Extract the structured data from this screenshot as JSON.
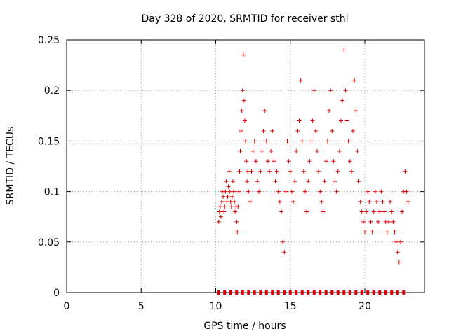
{
  "chart_data": {
    "type": "scatter",
    "title": "Day 328 of 2020, SRMTID for receiver sthl",
    "xlabel": "GPS time / hours",
    "ylabel": "SRMTID / TECUs",
    "xlim": [
      0,
      24
    ],
    "ylim": [
      0,
      0.25
    ],
    "x_ticks": [
      0,
      5,
      10,
      15,
      20
    ],
    "x_tick_labels": [
      "0",
      "5",
      "10",
      "15",
      "20"
    ],
    "y_ticks": [
      0,
      0.05,
      0.1,
      0.15,
      0.2,
      0.25
    ],
    "y_tick_labels": [
      "0",
      "0.05",
      "0.1",
      "0.15",
      "0.2",
      "0.25"
    ],
    "grid": true,
    "marker": "+",
    "color": "#dd0000",
    "series": [
      {
        "name": "SRMTID",
        "points": [
          [
            10.2,
            0.07
          ],
          [
            10.25,
            0.08
          ],
          [
            10.3,
            0.085
          ],
          [
            10.35,
            0.075
          ],
          [
            10.4,
            0.09
          ],
          [
            10.45,
            0.1
          ],
          [
            10.5,
            0.095
          ],
          [
            10.55,
            0.08
          ],
          [
            10.6,
            0.085
          ],
          [
            10.65,
            0.1
          ],
          [
            10.7,
            0.11
          ],
          [
            10.75,
            0.09
          ],
          [
            10.8,
            0.095
          ],
          [
            10.85,
            0.105
          ],
          [
            10.9,
            0.12
          ],
          [
            10.95,
            0.1
          ],
          [
            11.0,
            0.09
          ],
          [
            11.05,
            0.085
          ],
          [
            11.1,
            0.095
          ],
          [
            11.15,
            0.11
          ],
          [
            11.2,
            0.1
          ],
          [
            11.25,
            0.09
          ],
          [
            11.3,
            0.08
          ],
          [
            11.35,
            0.085
          ],
          [
            11.4,
            0.07
          ],
          [
            11.45,
            0.06
          ],
          [
            11.5,
            0.085
          ],
          [
            11.55,
            0.1
          ],
          [
            11.6,
            0.12
          ],
          [
            11.65,
            0.14
          ],
          [
            11.7,
            0.16
          ],
          [
            11.75,
            0.18
          ],
          [
            11.8,
            0.2
          ],
          [
            11.85,
            0.235
          ],
          [
            11.9,
            0.19
          ],
          [
            11.95,
            0.17
          ],
          [
            12.0,
            0.15
          ],
          [
            12.05,
            0.13
          ],
          [
            12.1,
            0.11
          ],
          [
            12.15,
            0.12
          ],
          [
            12.2,
            0.1
          ],
          [
            12.3,
            0.09
          ],
          [
            12.4,
            0.12
          ],
          [
            12.5,
            0.14
          ],
          [
            12.6,
            0.15
          ],
          [
            12.7,
            0.13
          ],
          [
            12.8,
            0.11
          ],
          [
            12.9,
            0.1
          ],
          [
            13.0,
            0.12
          ],
          [
            13.1,
            0.14
          ],
          [
            13.2,
            0.16
          ],
          [
            13.3,
            0.18
          ],
          [
            13.4,
            0.15
          ],
          [
            13.5,
            0.13
          ],
          [
            13.6,
            0.12
          ],
          [
            13.7,
            0.14
          ],
          [
            13.8,
            0.16
          ],
          [
            13.9,
            0.13
          ],
          [
            14.0,
            0.11
          ],
          [
            14.1,
            0.12
          ],
          [
            14.2,
            0.1
          ],
          [
            14.3,
            0.09
          ],
          [
            14.4,
            0.08
          ],
          [
            14.5,
            0.05
          ],
          [
            14.6,
            0.04
          ],
          [
            14.7,
            0.1
          ],
          [
            14.8,
            0.15
          ],
          [
            14.9,
            0.13
          ],
          [
            15.0,
            0.12
          ],
          [
            15.1,
            0.1
          ],
          [
            15.2,
            0.09
          ],
          [
            15.3,
            0.11
          ],
          [
            15.4,
            0.14
          ],
          [
            15.5,
            0.16
          ],
          [
            15.6,
            0.17
          ],
          [
            15.7,
            0.21
          ],
          [
            15.8,
            0.15
          ],
          [
            15.9,
            0.12
          ],
          [
            16.0,
            0.1
          ],
          [
            16.1,
            0.08
          ],
          [
            16.2,
            0.11
          ],
          [
            16.3,
            0.13
          ],
          [
            16.4,
            0.15
          ],
          [
            16.5,
            0.17
          ],
          [
            16.6,
            0.2
          ],
          [
            16.7,
            0.16
          ],
          [
            16.8,
            0.14
          ],
          [
            16.9,
            0.12
          ],
          [
            17.0,
            0.1
          ],
          [
            17.1,
            0.09
          ],
          [
            17.2,
            0.08
          ],
          [
            17.3,
            0.11
          ],
          [
            17.4,
            0.13
          ],
          [
            17.5,
            0.15
          ],
          [
            17.6,
            0.18
          ],
          [
            17.7,
            0.2
          ],
          [
            17.8,
            0.16
          ],
          [
            17.9,
            0.13
          ],
          [
            18.0,
            0.11
          ],
          [
            18.1,
            0.1
          ],
          [
            18.2,
            0.12
          ],
          [
            18.3,
            0.14
          ],
          [
            18.4,
            0.17
          ],
          [
            18.5,
            0.19
          ],
          [
            18.6,
            0.24
          ],
          [
            18.7,
            0.2
          ],
          [
            18.8,
            0.17
          ],
          [
            18.9,
            0.15
          ],
          [
            19.0,
            0.13
          ],
          [
            19.1,
            0.12
          ],
          [
            19.2,
            0.16
          ],
          [
            19.3,
            0.21
          ],
          [
            19.4,
            0.18
          ],
          [
            19.5,
            0.14
          ],
          [
            19.6,
            0.11
          ],
          [
            19.7,
            0.09
          ],
          [
            19.8,
            0.08
          ],
          [
            19.9,
            0.07
          ],
          [
            20.0,
            0.06
          ],
          [
            20.1,
            0.08
          ],
          [
            20.2,
            0.1
          ],
          [
            20.3,
            0.09
          ],
          [
            20.4,
            0.07
          ],
          [
            20.5,
            0.06
          ],
          [
            20.6,
            0.08
          ],
          [
            20.7,
            0.1
          ],
          [
            20.8,
            0.09
          ],
          [
            20.9,
            0.07
          ],
          [
            21.0,
            0.08
          ],
          [
            21.1,
            0.1
          ],
          [
            21.2,
            0.09
          ],
          [
            21.3,
            0.08
          ],
          [
            21.4,
            0.07
          ],
          [
            21.5,
            0.06
          ],
          [
            21.6,
            0.07
          ],
          [
            21.7,
            0.09
          ],
          [
            21.8,
            0.08
          ],
          [
            21.9,
            0.07
          ],
          [
            22.0,
            0.06
          ],
          [
            22.1,
            0.05
          ],
          [
            22.2,
            0.04
          ],
          [
            22.3,
            0.03
          ],
          [
            22.4,
            0.05
          ],
          [
            22.5,
            0.08
          ],
          [
            22.6,
            0.1
          ],
          [
            22.7,
            0.12
          ],
          [
            22.8,
            0.1
          ],
          [
            22.9,
            0.09
          ]
        ]
      }
    ],
    "baseline_marks_x": [
      10.2,
      10.6,
      11.0,
      11.4,
      11.8,
      12.2,
      12.6,
      13.0,
      13.4,
      13.8,
      14.2,
      14.6,
      15.0,
      15.4,
      15.8,
      16.2,
      16.6,
      17.0,
      17.4,
      17.8,
      18.2,
      18.6,
      19.0,
      19.4,
      19.8,
      20.2,
      20.6,
      21.0,
      21.4,
      21.8,
      22.2,
      22.6
    ]
  }
}
